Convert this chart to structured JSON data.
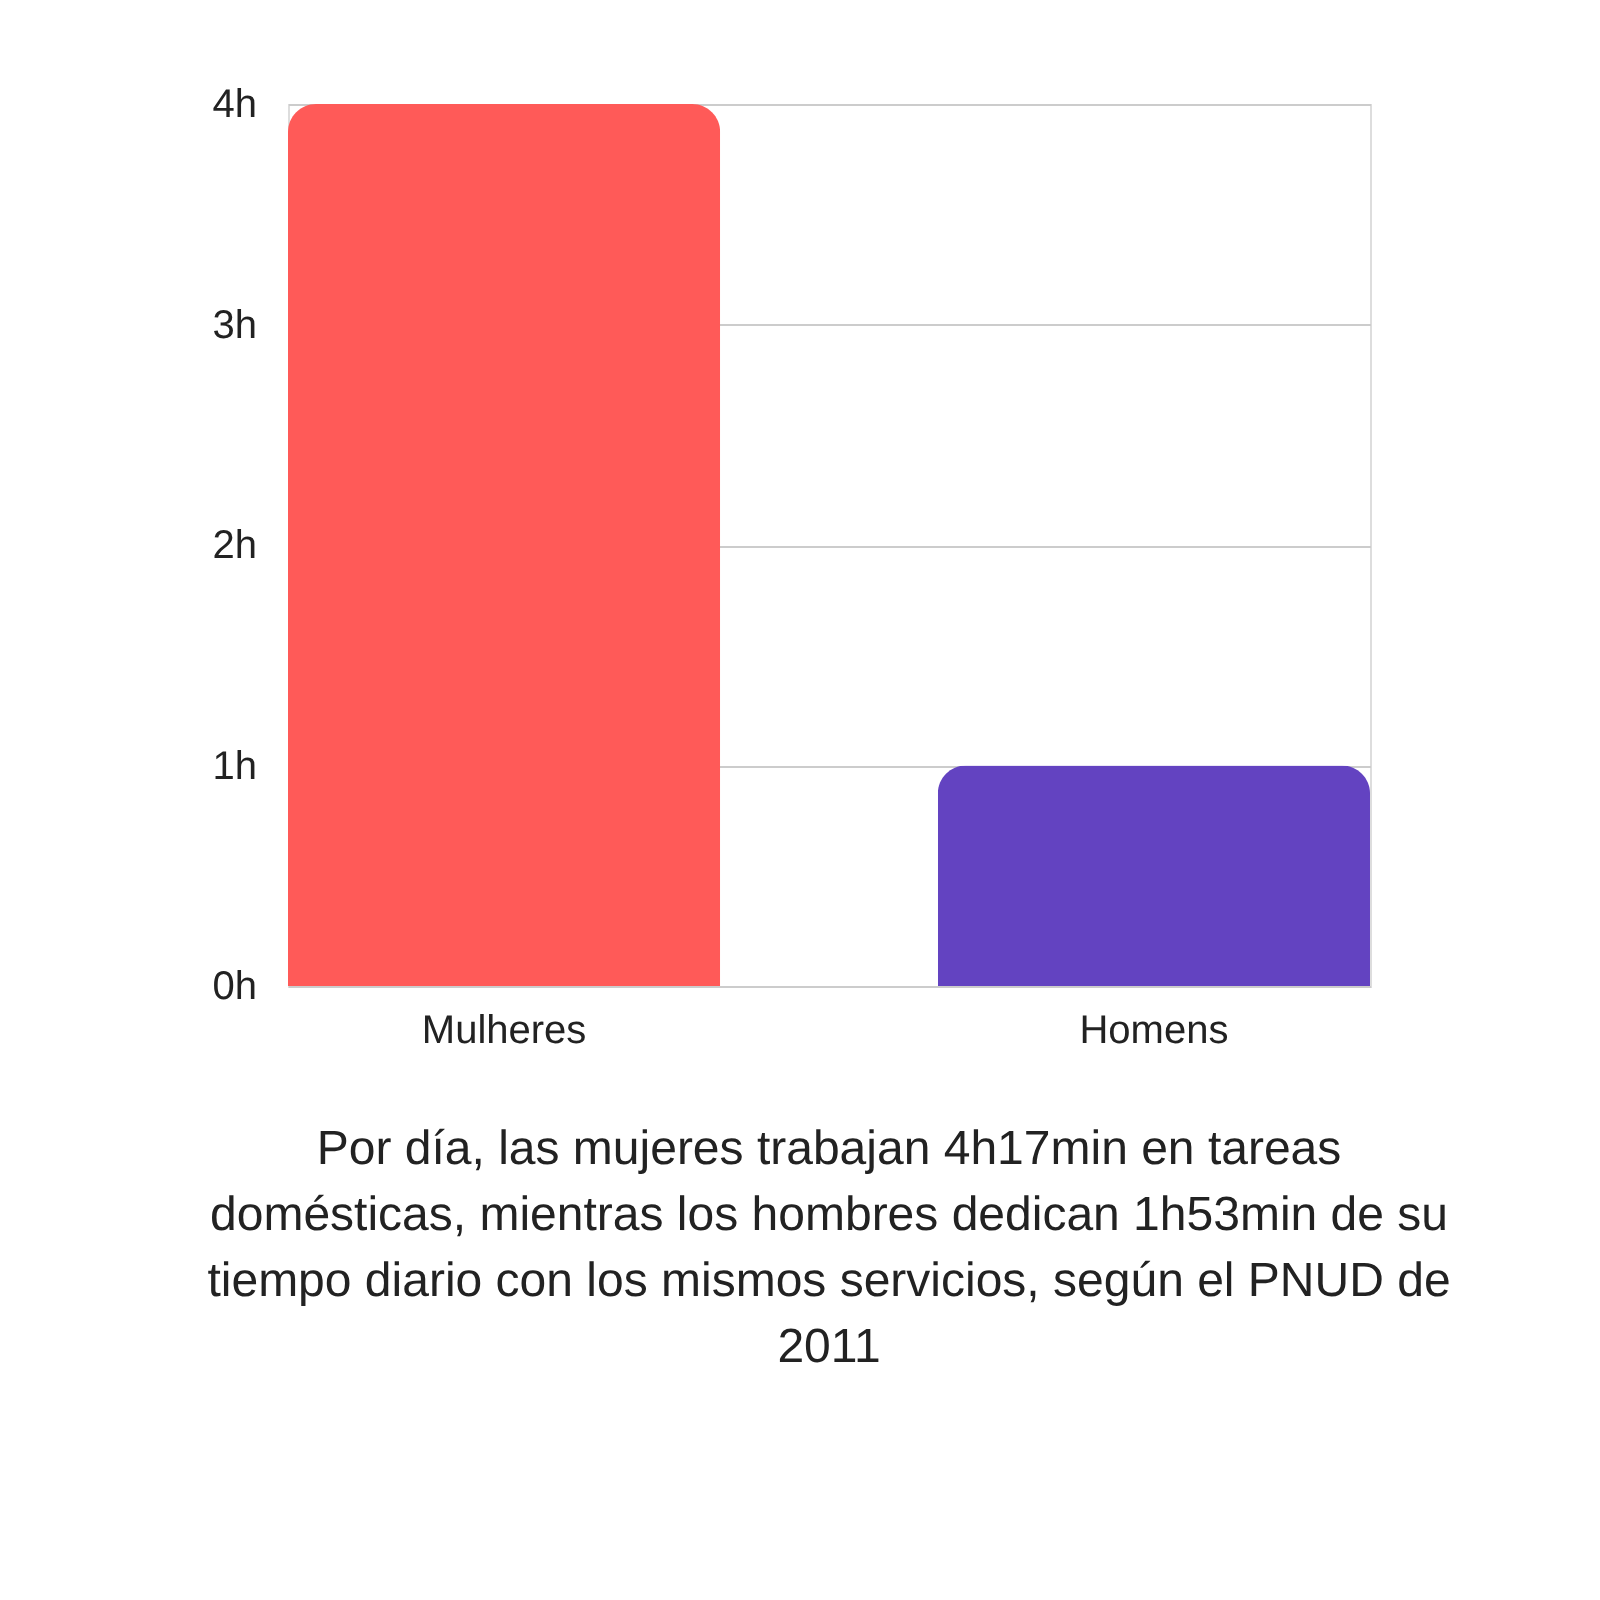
{
  "chart_data": {
    "type": "bar",
    "categories": [
      "Mulheres",
      "Homens"
    ],
    "colors": [
      "#ff5a58",
      "#6343c1"
    ],
    "values": [
      4,
      1
    ],
    "ylim": [
      0,
      4
    ],
    "yticks": [
      {
        "value": 0,
        "label": "0h"
      },
      {
        "value": 1,
        "label": "1h"
      },
      {
        "value": 2,
        "label": "2h"
      },
      {
        "value": 3,
        "label": "3h"
      },
      {
        "value": 4,
        "label": "4h"
      }
    ],
    "grid": "y",
    "annotations": [
      "Por día, las mujeres trabajan 4h17min en tareas domésticas, mientras los hombres dedican 1h53min de su tiempo diario con los mismos servicios, según el PNUD de 2011"
    ]
  }
}
